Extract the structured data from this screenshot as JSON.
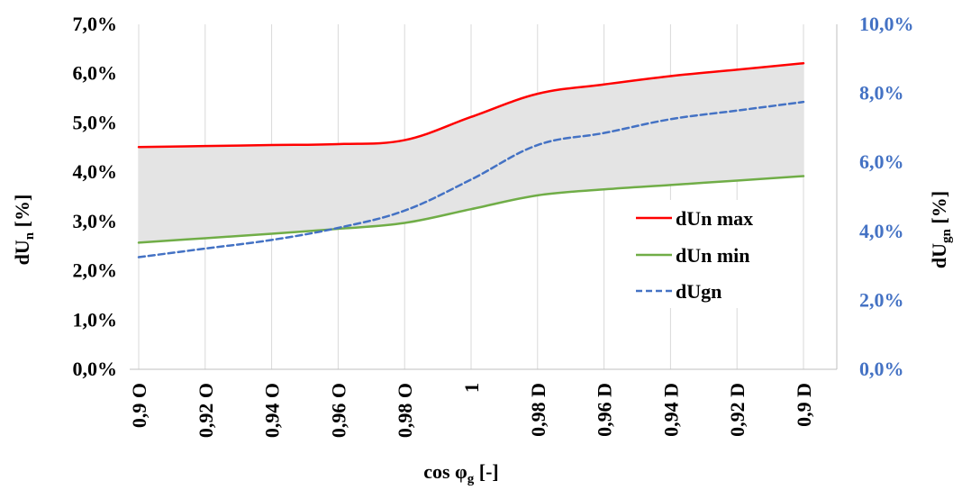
{
  "chart_data": {
    "type": "line",
    "categories": [
      "0,9 O",
      "0,92 O",
      "0,94 O",
      "0,96 O",
      "0,98 O",
      "1",
      "0,98 D",
      "0,96 D",
      "0,94 D",
      "0,92 D",
      "0,9 D"
    ],
    "xlabel": "cos φ_g [-]",
    "ylabel_left": "dU_n [%]",
    "ylabel_right": "dU_gn [%]",
    "ylim_left": [
      0,
      7
    ],
    "ylim_right": [
      0,
      10
    ],
    "yticks_left": [
      "0,0%",
      "1,0%",
      "2,0%",
      "3,0%",
      "4,0%",
      "5,0%",
      "6,0%",
      "7,0%"
    ],
    "yticks_right": [
      "0,0%",
      "2,0%",
      "4,0%",
      "6,0%",
      "8,0%",
      "10,0%"
    ],
    "grid": "vertical",
    "legend_position": "right-middle",
    "shaded_area": {
      "between": [
        "dUn min",
        "dUn max"
      ],
      "color": "#e4e4e4"
    },
    "series": [
      {
        "name": "dUn max",
        "axis": "left",
        "color": "#ff0000",
        "style": "solid",
        "values": [
          4.51,
          4.53,
          4.55,
          4.57,
          4.65,
          5.12,
          5.59,
          5.78,
          5.95,
          6.08,
          6.21
        ]
      },
      {
        "name": "dUn min",
        "axis": "left",
        "color": "#70ad47",
        "style": "solid",
        "values": [
          2.57,
          2.66,
          2.75,
          2.85,
          2.97,
          3.25,
          3.53,
          3.65,
          3.74,
          3.83,
          3.92
        ]
      },
      {
        "name": "dUgn",
        "axis": "right",
        "color": "#4472c4",
        "style": "dashed",
        "values": [
          3.25,
          3.5,
          3.75,
          4.1,
          4.6,
          5.5,
          6.5,
          6.85,
          7.25,
          7.5,
          7.75
        ]
      }
    ]
  },
  "colors": {
    "left_axis_text": "#000000",
    "right_axis_text": "#4472c4",
    "grid": "#d9d9d9",
    "axis_line": "#bfbfbf"
  }
}
